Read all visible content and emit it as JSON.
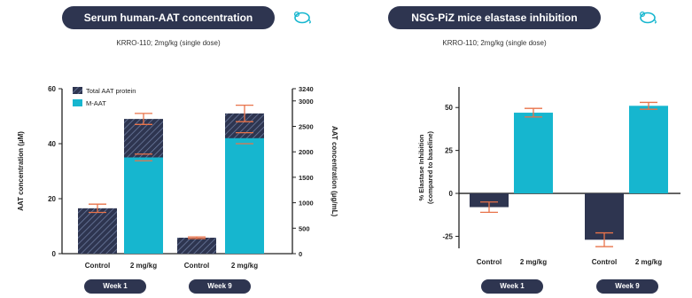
{
  "colors": {
    "navy": "#2e3550",
    "teal": "#16b6cf",
    "error": "#e8734a",
    "axis": "#222222"
  },
  "left_panel": {
    "banner": "Serum human-AAT concentration",
    "banner_icon": "mouse-icon",
    "subtitle": "KRRO-110; 2mg/kg (single dose)",
    "weeks": [
      "Week 1",
      "Week 9"
    ]
  },
  "right_panel": {
    "banner": "NSG-PiZ mice elastase inhibition",
    "banner_icon": "mouse-icon",
    "subtitle": "KRRO-110; 2mg/kg (single dose)",
    "weeks": [
      "Week 1",
      "Week 9"
    ]
  },
  "chart_data": [
    {
      "type": "bar",
      "categories": [
        "Control",
        "2 mg/kg",
        "Control",
        "2 mg/kg"
      ],
      "series": [
        {
          "name": "Total AAT protein",
          "values": [
            16.5,
            49,
            5.8,
            51
          ]
        },
        {
          "name": "M-AAT",
          "values": [
            0,
            35,
            0,
            42
          ]
        }
      ],
      "error": [
        1.5,
        2,
        0.3,
        3
      ],
      "merror": [
        null,
        1.2,
        null,
        2
      ],
      "xlabel": "",
      "ylabel": "AAT concentration (µM)",
      "ylim": [
        0,
        60
      ],
      "yticks": [
        0,
        20,
        40,
        60
      ],
      "y2label": "AAT concentration (µg/mL)",
      "y2lim": [
        0,
        3240
      ],
      "y2ticks": [
        0,
        500,
        1000,
        1500,
        2000,
        2500,
        3000,
        3240
      ],
      "legend_position": "top-left",
      "grid": false
    },
    {
      "type": "bar",
      "categories": [
        "Control",
        "2 mg/kg",
        "Control",
        "2 mg/kg"
      ],
      "values": [
        -8,
        47,
        -27,
        51
      ],
      "error": [
        3,
        2.5,
        4,
        2
      ],
      "ylabel": "% Elastase Inhibition\n(compared to baseline)",
      "ylim": [
        -32,
        62
      ],
      "yticks": [
        -25,
        0,
        25,
        50
      ],
      "grid": false,
      "legend_position": "none"
    }
  ]
}
